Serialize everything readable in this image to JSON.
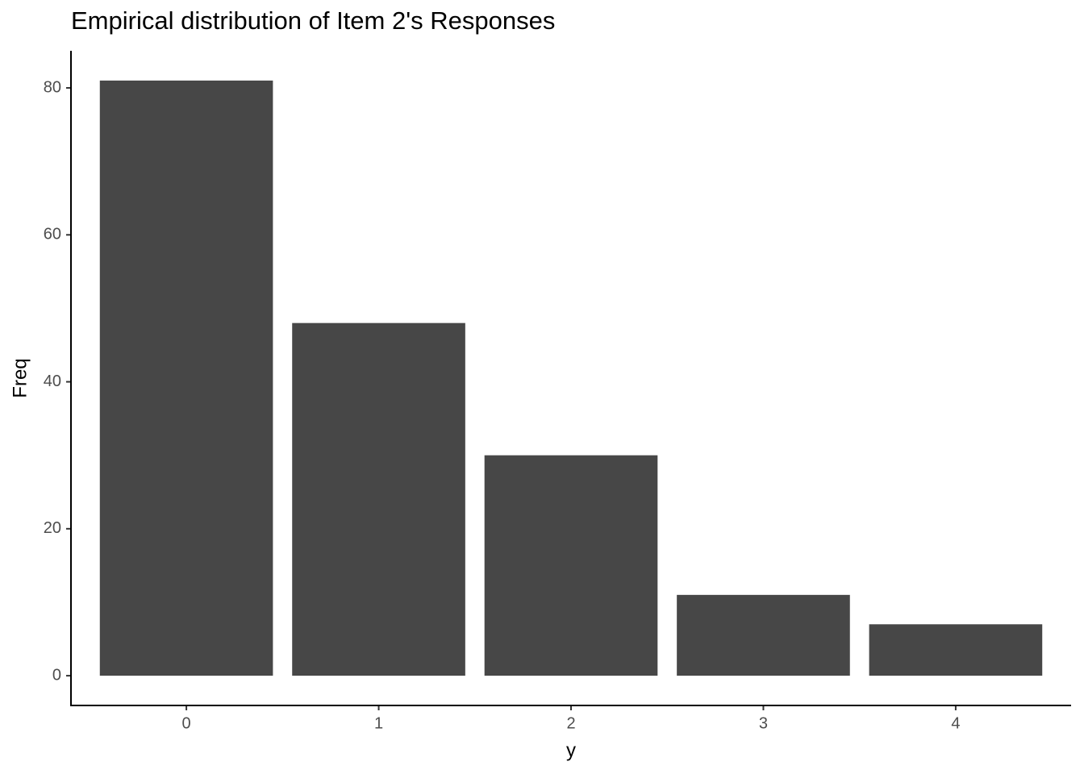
{
  "chart_data": {
    "type": "bar",
    "title": "Empirical distribution of Item 2's Responses",
    "x_label": "y",
    "y_label": "Freq",
    "categories": [
      "0",
      "1",
      "2",
      "3",
      "4"
    ],
    "values": [
      81,
      48,
      30,
      11,
      7
    ],
    "color": "#474747",
    "ylim": [
      -4.05,
      85.05
    ],
    "yticks": [
      0,
      20,
      40,
      60,
      80
    ],
    "grid": false
  }
}
